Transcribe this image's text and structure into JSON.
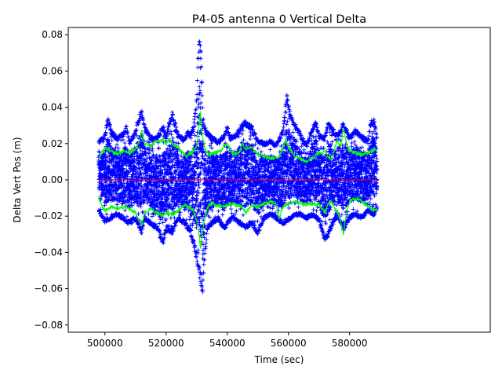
{
  "chart_data": {
    "type": "scatter",
    "title": "P4-05 antenna 0 Vertical Delta",
    "xlabel": "Time (sec)",
    "ylabel": "Delta Vert Pos (m)",
    "xlim": [
      488000,
      626000
    ],
    "ylim": [
      -0.084,
      0.084
    ],
    "xticks": [
      500000,
      520000,
      540000,
      560000,
      580000
    ],
    "xtick_labels": [
      "500000",
      "520000",
      "540000",
      "560000",
      "580000"
    ],
    "yticks": [
      -0.08,
      -0.06,
      -0.04,
      -0.02,
      0.0,
      0.02,
      0.04,
      0.06,
      0.08
    ],
    "ytick_labels": [
      "−0.08",
      "−0.06",
      "−0.04",
      "−0.02",
      "0.00",
      "0.02",
      "0.04",
      "0.06",
      "0.08"
    ],
    "grid": false,
    "colors": {
      "points": "#0000ff",
      "envelope": "#00ff00",
      "mean": "#ff0000"
    },
    "series": [
      {
        "kind": "scatter-band",
        "marker": "+",
        "x_range": [
          498000,
          589000
        ],
        "upper": [
          [
            498000,
            0.022
          ],
          [
            500000,
            0.025
          ],
          [
            501000,
            0.035
          ],
          [
            502000,
            0.028
          ],
          [
            504000,
            0.024
          ],
          [
            506000,
            0.026
          ],
          [
            507000,
            0.03
          ],
          [
            508000,
            0.022
          ],
          [
            510000,
            0.027
          ],
          [
            511000,
            0.035
          ],
          [
            512000,
            0.04
          ],
          [
            513000,
            0.03
          ],
          [
            515000,
            0.024
          ],
          [
            517000,
            0.024
          ],
          [
            519000,
            0.03
          ],
          [
            520000,
            0.025
          ],
          [
            521000,
            0.032
          ],
          [
            522000,
            0.038
          ],
          [
            524000,
            0.025
          ],
          [
            526000,
            0.023
          ],
          [
            527000,
            0.027
          ],
          [
            528000,
            0.026
          ],
          [
            529000,
            0.03
          ],
          [
            530000,
            0.045
          ],
          [
            530600,
            0.075
          ],
          [
            531000,
            0.08
          ],
          [
            531500,
            0.07
          ],
          [
            532000,
            0.035
          ],
          [
            533000,
            0.028
          ],
          [
            535000,
            0.024
          ],
          [
            537000,
            0.022
          ],
          [
            539000,
            0.025
          ],
          [
            540000,
            0.03
          ],
          [
            541000,
            0.024
          ],
          [
            543000,
            0.026
          ],
          [
            545000,
            0.032
          ],
          [
            546000,
            0.033
          ],
          [
            548000,
            0.03
          ],
          [
            550000,
            0.022
          ],
          [
            552000,
            0.021
          ],
          [
            554000,
            0.022
          ],
          [
            556000,
            0.02
          ],
          [
            558000,
            0.027
          ],
          [
            559000,
            0.04
          ],
          [
            559500,
            0.048
          ],
          [
            560000,
            0.042
          ],
          [
            561000,
            0.035
          ],
          [
            562000,
            0.033
          ],
          [
            564000,
            0.025
          ],
          [
            566000,
            0.02
          ],
          [
            568000,
            0.03
          ],
          [
            569000,
            0.033
          ],
          [
            570000,
            0.025
          ],
          [
            572000,
            0.024
          ],
          [
            573000,
            0.033
          ],
          [
            574000,
            0.03
          ],
          [
            576000,
            0.025
          ],
          [
            577000,
            0.028
          ],
          [
            578000,
            0.032
          ],
          [
            580000,
            0.024
          ],
          [
            582000,
            0.028
          ],
          [
            584000,
            0.025
          ],
          [
            586000,
            0.022
          ],
          [
            587000,
            0.033
          ],
          [
            588000,
            0.034
          ],
          [
            589000,
            0.024
          ]
        ],
        "lower": [
          [
            498000,
            -0.018
          ],
          [
            500000,
            -0.024
          ],
          [
            502000,
            -0.022
          ],
          [
            504000,
            -0.02
          ],
          [
            506000,
            -0.022
          ],
          [
            508000,
            -0.025
          ],
          [
            510000,
            -0.022
          ],
          [
            512000,
            -0.03
          ],
          [
            513000,
            -0.022
          ],
          [
            515000,
            -0.025
          ],
          [
            517000,
            -0.028
          ],
          [
            519000,
            -0.036
          ],
          [
            520000,
            -0.028
          ],
          [
            522000,
            -0.03
          ],
          [
            524000,
            -0.022
          ],
          [
            526000,
            -0.025
          ],
          [
            528000,
            -0.03
          ],
          [
            529000,
            -0.037
          ],
          [
            530000,
            -0.045
          ],
          [
            530800,
            -0.052
          ],
          [
            531500,
            -0.06
          ],
          [
            532000,
            -0.064
          ],
          [
            532500,
            -0.045
          ],
          [
            533500,
            -0.028
          ],
          [
            535000,
            -0.025
          ],
          [
            537000,
            -0.022
          ],
          [
            539000,
            -0.028
          ],
          [
            540000,
            -0.025
          ],
          [
            542000,
            -0.022
          ],
          [
            544000,
            -0.025
          ],
          [
            546000,
            -0.027
          ],
          [
            548000,
            -0.025
          ],
          [
            550000,
            -0.03
          ],
          [
            552000,
            -0.022
          ],
          [
            554000,
            -0.02
          ],
          [
            556000,
            -0.022
          ],
          [
            558000,
            -0.025
          ],
          [
            560000,
            -0.023
          ],
          [
            562000,
            -0.02
          ],
          [
            564000,
            -0.02
          ],
          [
            566000,
            -0.022
          ],
          [
            568000,
            -0.02
          ],
          [
            570000,
            -0.023
          ],
          [
            572000,
            -0.035
          ],
          [
            573000,
            -0.032
          ],
          [
            574000,
            -0.027
          ],
          [
            576000,
            -0.02
          ],
          [
            578000,
            -0.028
          ],
          [
            580000,
            -0.022
          ],
          [
            582000,
            -0.02
          ],
          [
            584000,
            -0.022
          ],
          [
            586000,
            -0.018
          ],
          [
            588000,
            -0.02
          ],
          [
            589000,
            -0.016
          ]
        ]
      },
      {
        "kind": "line",
        "role": "upper-envelope",
        "points": [
          [
            498000,
            0.012
          ],
          [
            499000,
            0.015
          ],
          [
            500000,
            0.018
          ],
          [
            502000,
            0.016
          ],
          [
            504000,
            0.014
          ],
          [
            506000,
            0.016
          ],
          [
            508000,
            0.015
          ],
          [
            510000,
            0.017
          ],
          [
            511000,
            0.02
          ],
          [
            512000,
            0.027
          ],
          [
            513000,
            0.02
          ],
          [
            514000,
            0.019
          ],
          [
            515000,
            0.018
          ],
          [
            516000,
            0.021
          ],
          [
            517000,
            0.022
          ],
          [
            518000,
            0.021
          ],
          [
            519000,
            0.022
          ],
          [
            520000,
            0.02
          ],
          [
            521000,
            0.023
          ],
          [
            522000,
            0.02
          ],
          [
            524000,
            0.018
          ],
          [
            526000,
            0.014
          ],
          [
            527000,
            0.013
          ],
          [
            528000,
            0.015
          ],
          [
            529000,
            0.016
          ],
          [
            530000,
            0.018
          ],
          [
            530800,
            0.03
          ],
          [
            531200,
            0.038
          ],
          [
            531600,
            0.03
          ],
          [
            532000,
            0.022
          ],
          [
            533000,
            0.016
          ],
          [
            534000,
            0.014
          ],
          [
            536000,
            0.015
          ],
          [
            538000,
            0.016
          ],
          [
            539000,
            0.019
          ],
          [
            540000,
            0.02
          ],
          [
            541000,
            0.016
          ],
          [
            542000,
            0.014
          ],
          [
            544000,
            0.015
          ],
          [
            545000,
            0.02
          ],
          [
            546000,
            0.017
          ],
          [
            548000,
            0.018
          ],
          [
            550000,
            0.014
          ],
          [
            552000,
            0.013
          ],
          [
            554000,
            0.012
          ],
          [
            556000,
            0.012
          ],
          [
            557000,
            0.013
          ],
          [
            558000,
            0.016
          ],
          [
            559000,
            0.022
          ],
          [
            560000,
            0.018
          ],
          [
            561000,
            0.016
          ],
          [
            562000,
            0.013
          ],
          [
            564000,
            0.012
          ],
          [
            566000,
            0.01
          ],
          [
            567000,
            0.011
          ],
          [
            568000,
            0.012
          ],
          [
            569000,
            0.014
          ],
          [
            570000,
            0.015
          ],
          [
            571000,
            0.014
          ],
          [
            572000,
            0.016
          ],
          [
            573000,
            0.013
          ],
          [
            574000,
            0.011
          ],
          [
            576000,
            0.022
          ],
          [
            577000,
            0.018
          ],
          [
            578000,
            0.028
          ],
          [
            579000,
            0.02
          ],
          [
            580000,
            0.016
          ],
          [
            582000,
            0.015
          ],
          [
            584000,
            0.014
          ],
          [
            586000,
            0.015
          ],
          [
            588000,
            0.017
          ],
          [
            589000,
            0.016
          ]
        ]
      },
      {
        "kind": "line",
        "role": "lower-envelope",
        "points": [
          [
            498000,
            -0.01
          ],
          [
            499000,
            -0.014
          ],
          [
            500000,
            -0.017
          ],
          [
            502000,
            -0.015
          ],
          [
            504000,
            -0.016
          ],
          [
            506000,
            -0.015
          ],
          [
            508000,
            -0.016
          ],
          [
            510000,
            -0.018
          ],
          [
            511000,
            -0.022
          ],
          [
            512000,
            -0.025
          ],
          [
            513000,
            -0.018
          ],
          [
            514000,
            -0.017
          ],
          [
            515000,
            -0.016
          ],
          [
            516000,
            -0.017
          ],
          [
            517000,
            -0.018
          ],
          [
            518000,
            -0.019
          ],
          [
            519000,
            -0.02
          ],
          [
            520000,
            -0.018
          ],
          [
            522000,
            -0.019
          ],
          [
            524000,
            -0.017
          ],
          [
            526000,
            -0.014
          ],
          [
            528000,
            -0.015
          ],
          [
            529000,
            -0.017
          ],
          [
            530000,
            -0.022
          ],
          [
            530800,
            -0.03
          ],
          [
            531300,
            -0.038
          ],
          [
            531800,
            -0.03
          ],
          [
            532500,
            -0.022
          ],
          [
            533500,
            -0.015
          ],
          [
            535000,
            -0.013
          ],
          [
            537000,
            -0.014
          ],
          [
            539000,
            -0.015
          ],
          [
            541000,
            -0.013
          ],
          [
            543000,
            -0.014
          ],
          [
            545000,
            -0.015
          ],
          [
            546000,
            -0.018
          ],
          [
            548000,
            -0.014
          ],
          [
            550000,
            -0.015
          ],
          [
            552000,
            -0.013
          ],
          [
            554000,
            -0.012
          ],
          [
            556000,
            -0.013
          ],
          [
            557000,
            -0.022
          ],
          [
            558000,
            -0.015
          ],
          [
            560000,
            -0.013
          ],
          [
            562000,
            -0.012
          ],
          [
            564000,
            -0.013
          ],
          [
            566000,
            -0.014
          ],
          [
            568000,
            -0.013
          ],
          [
            570000,
            -0.014
          ],
          [
            571000,
            -0.016
          ],
          [
            572000,
            -0.018
          ],
          [
            573000,
            -0.013
          ],
          [
            574000,
            -0.012
          ],
          [
            576000,
            -0.018
          ],
          [
            577000,
            -0.022
          ],
          [
            578000,
            -0.03
          ],
          [
            579000,
            -0.018
          ],
          [
            580000,
            -0.012
          ],
          [
            582000,
            -0.01
          ],
          [
            584000,
            -0.012
          ],
          [
            586000,
            -0.015
          ],
          [
            588000,
            -0.017
          ],
          [
            589000,
            -0.016
          ]
        ]
      },
      {
        "kind": "line",
        "role": "mean",
        "points": [
          [
            498000,
            0.0
          ],
          [
            589000,
            0.0
          ]
        ]
      }
    ]
  }
}
